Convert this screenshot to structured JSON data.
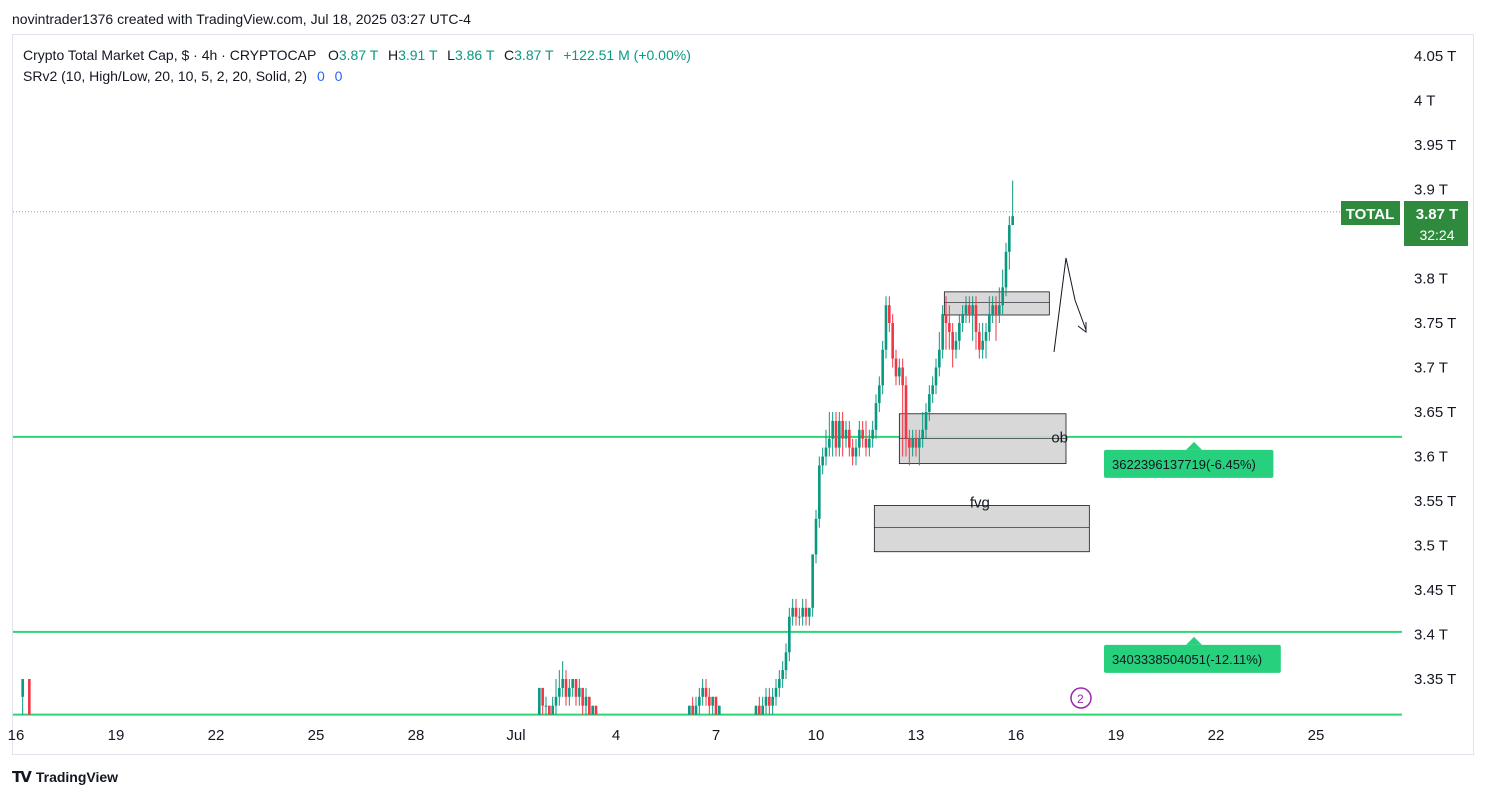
{
  "header": {
    "attribution": "novintrader1376 created with TradingView.com, Jul 18, 2025 03:27 UTC-4"
  },
  "legend": {
    "symbol_line": "Crypto Total Market Cap, $ · 4h · CRYPTOCAP",
    "open_label": "O",
    "open_value": "3.87 T",
    "high_label": "H",
    "high_value": "3.91 T",
    "low_label": "L",
    "low_value": "3.86 T",
    "close_label": "C",
    "close_value": "3.87 T",
    "change": "+122.51 M (+0.00%)",
    "indicator": "SRv2 (10, High/Low, 20, 10, 5, 2, 20, Solid, 2)",
    "indicator_val_1": "0",
    "indicator_val_2": "0"
  },
  "price_badge": {
    "symbol": "TOTAL",
    "price": "3.87 T",
    "countdown": "32:24"
  },
  "footer": {
    "brand": "TradingView"
  },
  "colors": {
    "up": "#089981",
    "down": "#f23645",
    "level_line": "#2ed573",
    "label_bg": "#26d07c",
    "badge_bg": "#2e8b3e",
    "zone_fill": "#d4d4d4"
  },
  "chart_data": {
    "type": "candlestick",
    "y_axis": {
      "min": 3.3,
      "max": 4.07,
      "unit": "T",
      "ticks": [
        {
          "value": 4.05,
          "label": "4.05 T"
        },
        {
          "value": 4.0,
          "label": "4 T"
        },
        {
          "value": 3.95,
          "label": "3.95 T"
        },
        {
          "value": 3.9,
          "label": "3.9 T"
        },
        {
          "value": 3.8,
          "label": "3.8 T"
        },
        {
          "value": 3.75,
          "label": "3.75 T"
        },
        {
          "value": 3.7,
          "label": "3.7 T"
        },
        {
          "value": 3.65,
          "label": "3.65 T"
        },
        {
          "value": 3.6,
          "label": "3.6 T"
        },
        {
          "value": 3.55,
          "label": "3.55 T"
        },
        {
          "value": 3.5,
          "label": "3.5 T"
        },
        {
          "value": 3.45,
          "label": "3.45 T"
        },
        {
          "value": 3.4,
          "label": "3.4 T"
        },
        {
          "value": 3.35,
          "label": "3.35 T"
        }
      ]
    },
    "x_axis": {
      "day_start": 15.9,
      "day_end": 28.8,
      "ticks": [
        {
          "day": 16,
          "label": "16"
        },
        {
          "day": 19,
          "label": "19"
        },
        {
          "day": 22,
          "label": "22"
        },
        {
          "day": 25,
          "label": "25"
        },
        {
          "day": 28,
          "label": "28"
        },
        {
          "day": 31,
          "label": "Jul"
        },
        {
          "day": 34,
          "label": "4"
        },
        {
          "day": 37,
          "label": "7"
        },
        {
          "day": 40,
          "label": "10"
        },
        {
          "day": 43,
          "label": "13"
        },
        {
          "day": 46,
          "label": "16"
        },
        {
          "day": 49,
          "label": "19"
        },
        {
          "day": 52,
          "label": "22"
        },
        {
          "day": 55,
          "label": "25"
        }
      ]
    },
    "last_price": 3.875,
    "levels": [
      {
        "value": 3.622,
        "label": "3622396137719(-6.45%)"
      },
      {
        "value": 3.403,
        "label": "3403338504051(-12.11%)"
      },
      {
        "value": 3.31,
        "label": ""
      }
    ],
    "zones": [
      {
        "label": "",
        "day_from": 43.85,
        "day_to": 47.0,
        "top": 3.785,
        "bottom": 3.759,
        "mid": 3.773
      },
      {
        "label": "ob",
        "day_from": 42.5,
        "day_to": 47.5,
        "top": 3.648,
        "bottom": 3.592,
        "mid": 3.62
      },
      {
        "label": "fvg",
        "day_from": 41.75,
        "day_to": 48.2,
        "top": 3.545,
        "bottom": 3.493,
        "mid": 3.52
      }
    ],
    "candles": [
      [
        16.2,
        3.33,
        3.35,
        3.35,
        3.31
      ],
      [
        16.4,
        3.35,
        3.31,
        3.35,
        3.31
      ],
      [
        31.7,
        3.31,
        3.34,
        3.34,
        3.31
      ],
      [
        31.8,
        3.34,
        3.32,
        3.34,
        3.31
      ],
      [
        31.9,
        3.32,
        3.32,
        3.33,
        3.31
      ],
      [
        32.0,
        3.32,
        3.31,
        3.32,
        3.31
      ],
      [
        32.1,
        3.31,
        3.32,
        3.33,
        3.31
      ],
      [
        32.2,
        3.32,
        3.33,
        3.35,
        3.31
      ],
      [
        32.3,
        3.33,
        3.34,
        3.36,
        3.32
      ],
      [
        32.4,
        3.34,
        3.35,
        3.37,
        3.33
      ],
      [
        32.5,
        3.35,
        3.33,
        3.36,
        3.32
      ],
      [
        32.6,
        3.33,
        3.34,
        3.35,
        3.32
      ],
      [
        32.7,
        3.34,
        3.35,
        3.35,
        3.33
      ],
      [
        32.8,
        3.35,
        3.33,
        3.35,
        3.32
      ],
      [
        32.9,
        3.33,
        3.34,
        3.35,
        3.32
      ],
      [
        33.0,
        3.34,
        3.32,
        3.34,
        3.31
      ],
      [
        33.1,
        3.32,
        3.33,
        3.34,
        3.31
      ],
      [
        33.2,
        3.33,
        3.31,
        3.33,
        3.31
      ],
      [
        33.3,
        3.31,
        3.32,
        3.32,
        3.31
      ],
      [
        33.4,
        3.32,
        3.31,
        3.32,
        3.31
      ],
      [
        36.2,
        3.31,
        3.32,
        3.32,
        3.31
      ],
      [
        36.3,
        3.32,
        3.31,
        3.33,
        3.31
      ],
      [
        36.4,
        3.31,
        3.32,
        3.33,
        3.31
      ],
      [
        36.5,
        3.32,
        3.33,
        3.34,
        3.31
      ],
      [
        36.6,
        3.33,
        3.34,
        3.35,
        3.32
      ],
      [
        36.7,
        3.34,
        3.33,
        3.35,
        3.32
      ],
      [
        36.8,
        3.33,
        3.32,
        3.34,
        3.31
      ],
      [
        36.9,
        3.32,
        3.33,
        3.33,
        3.31
      ],
      [
        37.0,
        3.33,
        3.31,
        3.33,
        3.31
      ],
      [
        37.1,
        3.31,
        3.32,
        3.32,
        3.31
      ],
      [
        38.2,
        3.31,
        3.32,
        3.32,
        3.31
      ],
      [
        38.3,
        3.32,
        3.31,
        3.33,
        3.31
      ],
      [
        38.4,
        3.31,
        3.32,
        3.33,
        3.31
      ],
      [
        38.5,
        3.32,
        3.33,
        3.34,
        3.31
      ],
      [
        38.6,
        3.33,
        3.32,
        3.34,
        3.31
      ],
      [
        38.7,
        3.32,
        3.33,
        3.34,
        3.31
      ],
      [
        38.8,
        3.33,
        3.34,
        3.35,
        3.32
      ],
      [
        38.9,
        3.34,
        3.35,
        3.36,
        3.33
      ],
      [
        39.0,
        3.35,
        3.36,
        3.37,
        3.34
      ],
      [
        39.1,
        3.36,
        3.38,
        3.39,
        3.35
      ],
      [
        39.2,
        3.38,
        3.42,
        3.43,
        3.37
      ],
      [
        39.3,
        3.42,
        3.43,
        3.44,
        3.41
      ],
      [
        39.4,
        3.43,
        3.42,
        3.44,
        3.41
      ],
      [
        39.5,
        3.42,
        3.42,
        3.43,
        3.41
      ],
      [
        39.6,
        3.42,
        3.43,
        3.44,
        3.41
      ],
      [
        39.7,
        3.43,
        3.42,
        3.44,
        3.41
      ],
      [
        39.8,
        3.42,
        3.43,
        3.43,
        3.41
      ],
      [
        39.9,
        3.43,
        3.49,
        3.49,
        3.42
      ],
      [
        40.0,
        3.49,
        3.53,
        3.54,
        3.48
      ],
      [
        40.1,
        3.53,
        3.59,
        3.6,
        3.52
      ],
      [
        40.2,
        3.59,
        3.6,
        3.61,
        3.58
      ],
      [
        40.3,
        3.6,
        3.61,
        3.63,
        3.59
      ],
      [
        40.4,
        3.61,
        3.62,
        3.65,
        3.6
      ],
      [
        40.5,
        3.62,
        3.64,
        3.65,
        3.6
      ],
      [
        40.6,
        3.64,
        3.61,
        3.65,
        3.6
      ],
      [
        40.7,
        3.61,
        3.64,
        3.65,
        3.6
      ],
      [
        40.8,
        3.64,
        3.62,
        3.65,
        3.6
      ],
      [
        40.9,
        3.62,
        3.63,
        3.64,
        3.61
      ],
      [
        41.0,
        3.63,
        3.61,
        3.64,
        3.6
      ],
      [
        41.1,
        3.61,
        3.6,
        3.62,
        3.59
      ],
      [
        41.2,
        3.6,
        3.61,
        3.62,
        3.59
      ],
      [
        41.3,
        3.61,
        3.63,
        3.64,
        3.6
      ],
      [
        41.4,
        3.63,
        3.62,
        3.64,
        3.61
      ],
      [
        41.5,
        3.62,
        3.61,
        3.64,
        3.6
      ],
      [
        41.6,
        3.61,
        3.62,
        3.63,
        3.6
      ],
      [
        41.7,
        3.62,
        3.63,
        3.64,
        3.61
      ],
      [
        41.8,
        3.63,
        3.66,
        3.67,
        3.62
      ],
      [
        41.9,
        3.66,
        3.68,
        3.69,
        3.65
      ],
      [
        42.0,
        3.68,
        3.72,
        3.73,
        3.67
      ],
      [
        42.1,
        3.72,
        3.77,
        3.78,
        3.71
      ],
      [
        42.2,
        3.77,
        3.75,
        3.78,
        3.74
      ],
      [
        42.3,
        3.75,
        3.71,
        3.76,
        3.7
      ],
      [
        42.4,
        3.71,
        3.69,
        3.72,
        3.68
      ],
      [
        42.5,
        3.69,
        3.7,
        3.71,
        3.68
      ],
      [
        42.6,
        3.7,
        3.68,
        3.71,
        3.6
      ],
      [
        42.7,
        3.68,
        3.62,
        3.69,
        3.6
      ],
      [
        42.8,
        3.62,
        3.61,
        3.63,
        3.59
      ],
      [
        42.9,
        3.61,
        3.62,
        3.63,
        3.6
      ],
      [
        43.0,
        3.62,
        3.61,
        3.63,
        3.6
      ],
      [
        43.1,
        3.61,
        3.62,
        3.63,
        3.59
      ],
      [
        43.2,
        3.62,
        3.63,
        3.65,
        3.61
      ],
      [
        43.3,
        3.63,
        3.65,
        3.66,
        3.62
      ],
      [
        43.4,
        3.65,
        3.67,
        3.68,
        3.64
      ],
      [
        43.5,
        3.67,
        3.68,
        3.69,
        3.66
      ],
      [
        43.6,
        3.68,
        3.7,
        3.71,
        3.67
      ],
      [
        43.7,
        3.7,
        3.72,
        3.74,
        3.69
      ],
      [
        43.8,
        3.72,
        3.76,
        3.77,
        3.71
      ],
      [
        43.9,
        3.76,
        3.75,
        3.78,
        3.72
      ],
      [
        44.0,
        3.75,
        3.74,
        3.77,
        3.72
      ],
      [
        44.1,
        3.74,
        3.72,
        3.75,
        3.7
      ],
      [
        44.2,
        3.72,
        3.73,
        3.74,
        3.71
      ],
      [
        44.3,
        3.73,
        3.75,
        3.76,
        3.72
      ],
      [
        44.4,
        3.75,
        3.76,
        3.77,
        3.74
      ],
      [
        44.5,
        3.76,
        3.77,
        3.78,
        3.75
      ],
      [
        44.6,
        3.77,
        3.76,
        3.78,
        3.75
      ],
      [
        44.7,
        3.76,
        3.77,
        3.78,
        3.73
      ],
      [
        44.8,
        3.77,
        3.74,
        3.78,
        3.72
      ],
      [
        44.9,
        3.74,
        3.72,
        3.75,
        3.71
      ],
      [
        45.0,
        3.72,
        3.73,
        3.75,
        3.71
      ],
      [
        45.1,
        3.73,
        3.74,
        3.75,
        3.71
      ],
      [
        45.2,
        3.74,
        3.76,
        3.78,
        3.73
      ],
      [
        45.3,
        3.76,
        3.77,
        3.78,
        3.75
      ],
      [
        45.4,
        3.77,
        3.76,
        3.78,
        3.73
      ],
      [
        45.5,
        3.76,
        3.77,
        3.79,
        3.75
      ],
      [
        45.6,
        3.77,
        3.79,
        3.81,
        3.76
      ],
      [
        45.7,
        3.79,
        3.83,
        3.84,
        3.78
      ],
      [
        45.8,
        3.83,
        3.86,
        3.87,
        3.81
      ],
      [
        45.9,
        3.86,
        3.87,
        3.91,
        3.86
      ]
    ]
  }
}
